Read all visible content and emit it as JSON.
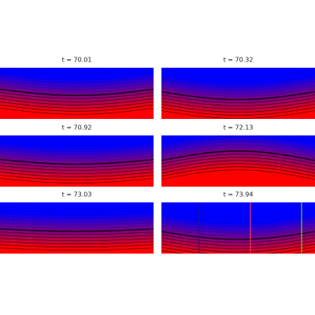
{
  "panels": [
    {
      "title": "t = 70.01"
    },
    {
      "title": "t = 70.32"
    },
    {
      "title": "t = 70.92"
    },
    {
      "title": "t = 72.13"
    },
    {
      "title": "t = 73.03"
    },
    {
      "title": "t = 73.94"
    }
  ]
}
